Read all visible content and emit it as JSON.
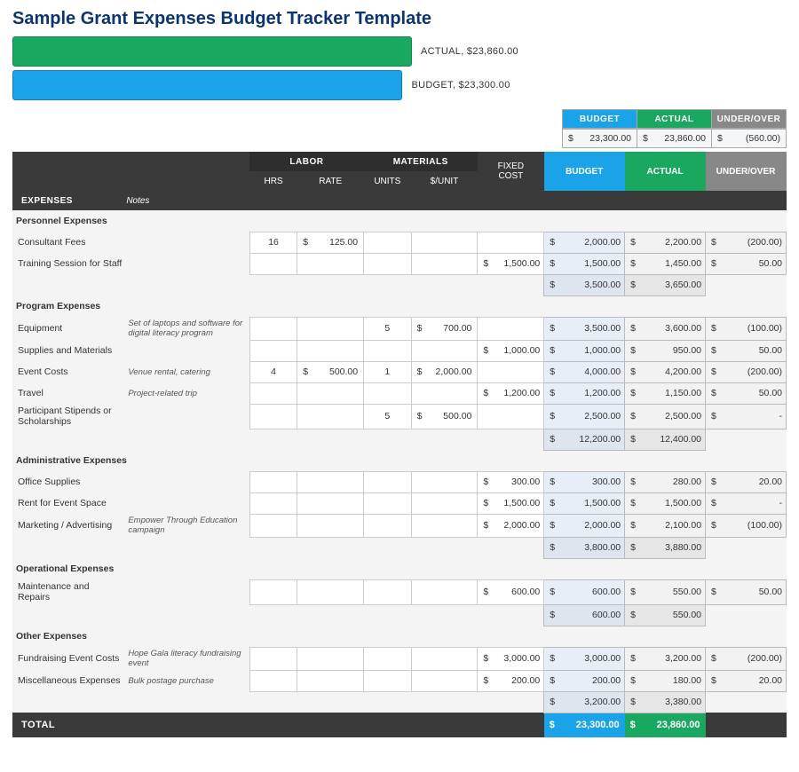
{
  "title": {
    "text": "Sample Grant Expenses Budget Tracker Template",
    "color": "#0b3572"
  },
  "bars": {
    "container_width": 450,
    "actual": {
      "label": "ACTUAL,  $23,860.00",
      "value": 23860,
      "color": "#1aa861",
      "border": "#0e8a4a"
    },
    "budget": {
      "label": "BUDGET,  $23,300.00",
      "value": 23300,
      "color": "#1aa3e8",
      "border": "#0b7ec0"
    }
  },
  "colors": {
    "blue": "#1aa3e8",
    "green": "#1aa861",
    "grey": "#888888",
    "dark": "#3a3a3a",
    "bud_cell": "#e8eef7",
    "act_cell": "#f2f2f2"
  },
  "summary": {
    "headers": {
      "budget": "BUDGET",
      "actual": "ACTUAL",
      "under_over": "UNDER/OVER"
    },
    "budget": "23,300.00",
    "actual": "23,860.00",
    "under_over": "(560.00)"
  },
  "table_headers": {
    "expenses": "EXPENSES",
    "notes": "Notes",
    "labor": "LABOR",
    "hrs": "HRS",
    "rate": "RATE",
    "materials": "MATERIALS",
    "units": "UNITS",
    "per_unit": "$/UNIT",
    "fixed_cost": "FIXED COST",
    "budget": "BUDGET",
    "actual": "ACTUAL",
    "under_over": "UNDER/OVER"
  },
  "sections": [
    {
      "title": "Personnel Expenses",
      "rows": [
        {
          "name": "Consultant Fees",
          "notes": "",
          "hrs": "16",
          "rate": "125.00",
          "units": "",
          "per_unit": "",
          "fixed": "",
          "budget": "2,000.00",
          "actual": "2,200.00",
          "uo": "(200.00)"
        },
        {
          "name": "Training Session for Staff",
          "notes": "",
          "hrs": "",
          "rate": "",
          "units": "",
          "per_unit": "",
          "fixed": "1,500.00",
          "budget": "1,500.00",
          "actual": "1,450.00",
          "uo": "50.00"
        }
      ],
      "subtotal": {
        "budget": "3,500.00",
        "actual": "3,650.00"
      }
    },
    {
      "title": "Program Expenses",
      "rows": [
        {
          "name": "Equipment",
          "notes": "Set of laptops and software for digital literacy program",
          "hrs": "",
          "rate": "",
          "units": "5",
          "per_unit": "700.00",
          "fixed": "",
          "budget": "3,500.00",
          "actual": "3,600.00",
          "uo": "(100.00)"
        },
        {
          "name": "Supplies and Materials",
          "notes": "",
          "hrs": "",
          "rate": "",
          "units": "",
          "per_unit": "",
          "fixed": "1,000.00",
          "budget": "1,000.00",
          "actual": "950.00",
          "uo": "50.00"
        },
        {
          "name": "Event Costs",
          "notes": "Venue rental, catering",
          "hrs": "4",
          "rate": "500.00",
          "units": "1",
          "per_unit": "2,000.00",
          "fixed": "",
          "budget": "4,000.00",
          "actual": "4,200.00",
          "uo": "(200.00)"
        },
        {
          "name": "Travel",
          "notes": "Project-related trip",
          "hrs": "",
          "rate": "",
          "units": "",
          "per_unit": "",
          "fixed": "1,200.00",
          "budget": "1,200.00",
          "actual": "1,150.00",
          "uo": "50.00"
        },
        {
          "name": "Participant Stipends or Scholarships",
          "notes": "",
          "hrs": "",
          "rate": "",
          "units": "5",
          "per_unit": "500.00",
          "fixed": "",
          "budget": "2,500.00",
          "actual": "2,500.00",
          "uo": "-"
        }
      ],
      "subtotal": {
        "budget": "12,200.00",
        "actual": "12,400.00"
      }
    },
    {
      "title": "Administrative Expenses",
      "rows": [
        {
          "name": "Office Supplies",
          "notes": "",
          "hrs": "",
          "rate": "",
          "units": "",
          "per_unit": "",
          "fixed": "300.00",
          "budget": "300.00",
          "actual": "280.00",
          "uo": "20.00"
        },
        {
          "name": "Rent for Event Space",
          "notes": "",
          "hrs": "",
          "rate": "",
          "units": "",
          "per_unit": "",
          "fixed": "1,500.00",
          "budget": "1,500.00",
          "actual": "1,500.00",
          "uo": "-"
        },
        {
          "name": "Marketing / Advertising",
          "notes": "Empower Through Education campaign",
          "hrs": "",
          "rate": "",
          "units": "",
          "per_unit": "",
          "fixed": "2,000.00",
          "budget": "2,000.00",
          "actual": "2,100.00",
          "uo": "(100.00)"
        }
      ],
      "subtotal": {
        "budget": "3,800.00",
        "actual": "3,880.00"
      }
    },
    {
      "title": "Operational Expenses",
      "rows": [
        {
          "name": "Maintenance and Repairs",
          "notes": "",
          "hrs": "",
          "rate": "",
          "units": "",
          "per_unit": "",
          "fixed": "600.00",
          "budget": "600.00",
          "actual": "550.00",
          "uo": "50.00"
        }
      ],
      "subtotal": {
        "budget": "600.00",
        "actual": "550.00"
      }
    },
    {
      "title": "Other Expenses",
      "rows": [
        {
          "name": "Fundraising Event Costs",
          "notes": "Hope Gala literacy fundraising event",
          "hrs": "",
          "rate": "",
          "units": "",
          "per_unit": "",
          "fixed": "3,000.00",
          "budget": "3,000.00",
          "actual": "3,200.00",
          "uo": "(200.00)"
        },
        {
          "name": "Miscellaneous Expenses",
          "notes": "Bulk postage purchase",
          "hrs": "",
          "rate": "",
          "units": "",
          "per_unit": "",
          "fixed": "200.00",
          "budget": "200.00",
          "actual": "180.00",
          "uo": "20.00"
        }
      ],
      "subtotal": {
        "budget": "3,200.00",
        "actual": "3,380.00"
      }
    }
  ],
  "grand_total": {
    "label": "TOTAL",
    "budget": "23,300.00",
    "actual": "23,860.00"
  }
}
